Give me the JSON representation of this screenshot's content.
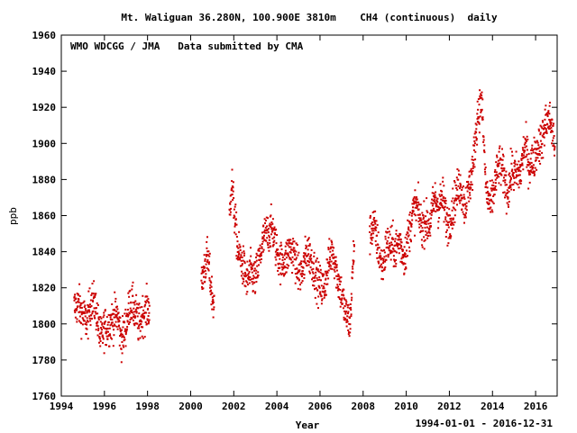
{
  "chart_data": {
    "type": "scatter",
    "title": "Mt. Waliguan 36.280N, 100.900E 3810m    CH4 (continuous)  daily",
    "annotation": "WMO WDCGG / JMA   Data submitted by CMA",
    "xlabel": "Year",
    "ylabel": "ppb",
    "date_range_label": "1994-01-01 - 2016-12-31",
    "xlim": [
      1994,
      2017
    ],
    "ylim": [
      1760,
      1960
    ],
    "x_ticks": [
      "1994",
      "1996",
      "1998",
      "2000",
      "2002",
      "2004",
      "2006",
      "2008",
      "2010",
      "2012",
      "2014",
      "2016"
    ],
    "y_ticks": [
      "1760",
      "1780",
      "1800",
      "1820",
      "1840",
      "1860",
      "1880",
      "1900",
      "1920",
      "1940",
      "1960"
    ],
    "grid": false,
    "marker_color": "#cc0000",
    "series": [
      {
        "segments": [
          {
            "x": [
              1994.6,
              1994.8,
              1995.0,
              1995.2,
              1995.4,
              1995.6,
              1995.8,
              1996.0,
              1996.2,
              1996.4,
              1996.6,
              1996.8,
              1997.0,
              1997.2,
              1997.4,
              1997.6,
              1997.8,
              1998.0,
              1998.1
            ],
            "y": [
              1806,
              1814,
              1810,
              1801,
              1808,
              1806,
              1795,
              1803,
              1799,
              1797,
              1802,
              1794,
              1805,
              1812,
              1802,
              1796,
              1809,
              1814,
              1812
            ]
          },
          {
            "x": [
              2000.5,
              2000.6,
              2000.7,
              2000.8,
              2000.9,
              2001.0,
              2001.1
            ],
            "y": [
              1815,
              1826,
              1834,
              1840,
              1830,
              1820,
              1812
            ]
          },
          {
            "x": [
              2001.8,
              2001.9,
              2002.0,
              2002.2,
              2002.4,
              2002.6,
              2002.8,
              2003.0,
              2003.2,
              2003.4,
              2003.6,
              2003.8,
              2004.0,
              2004.2,
              2004.4,
              2004.6,
              2004.8,
              2005.0,
              2005.2,
              2005.4,
              2005.6,
              2005.8,
              2006.0,
              2006.2,
              2006.4,
              2006.6,
              2006.8,
              2007.0,
              2007.2,
              2007.4,
              2007.6
            ],
            "y": [
              1860,
              1885,
              1870,
              1840,
              1828,
              1820,
              1832,
              1830,
              1836,
              1842,
              1848,
              1856,
              1845,
              1834,
              1830,
              1838,
              1842,
              1834,
              1828,
              1836,
              1832,
              1830,
              1826,
              1820,
              1828,
              1838,
              1830,
              1822,
              1805,
              1795,
              1845
            ]
          },
          {
            "x": [
              2008.3,
              2008.5,
              2008.7,
              2008.9,
              2009.1,
              2009.3,
              2009.5,
              2009.7,
              2009.9,
              2010.1,
              2010.3,
              2010.5,
              2010.7,
              2010.9,
              2011.1,
              2011.3,
              2011.5,
              2011.7,
              2011.9,
              2012.1,
              2012.3,
              2012.5,
              2012.7,
              2012.9,
              2013.1,
              2013.3,
              2013.5,
              2013.7,
              2013.9,
              2014.1,
              2014.3,
              2014.5,
              2014.7,
              2014.9,
              2015.1,
              2015.3,
              2015.5,
              2015.7,
              2015.9,
              2016.1,
              2016.3,
              2016.5,
              2016.7,
              2016.9
            ],
            "y": [
              1846,
              1850,
              1842,
              1836,
              1848,
              1840,
              1836,
              1846,
              1842,
              1852,
              1858,
              1860,
              1854,
              1862,
              1858,
              1866,
              1860,
              1870,
              1860,
              1864,
              1868,
              1872,
              1865,
              1880,
              1890,
              1912,
              1918,
              1875,
              1870,
              1880,
              1885,
              1878,
              1872,
              1890,
              1886,
              1880,
              1894,
              1888,
              1896,
              1902,
              1898,
              1908,
              1912,
              1904
            ]
          }
        ]
      }
    ]
  }
}
